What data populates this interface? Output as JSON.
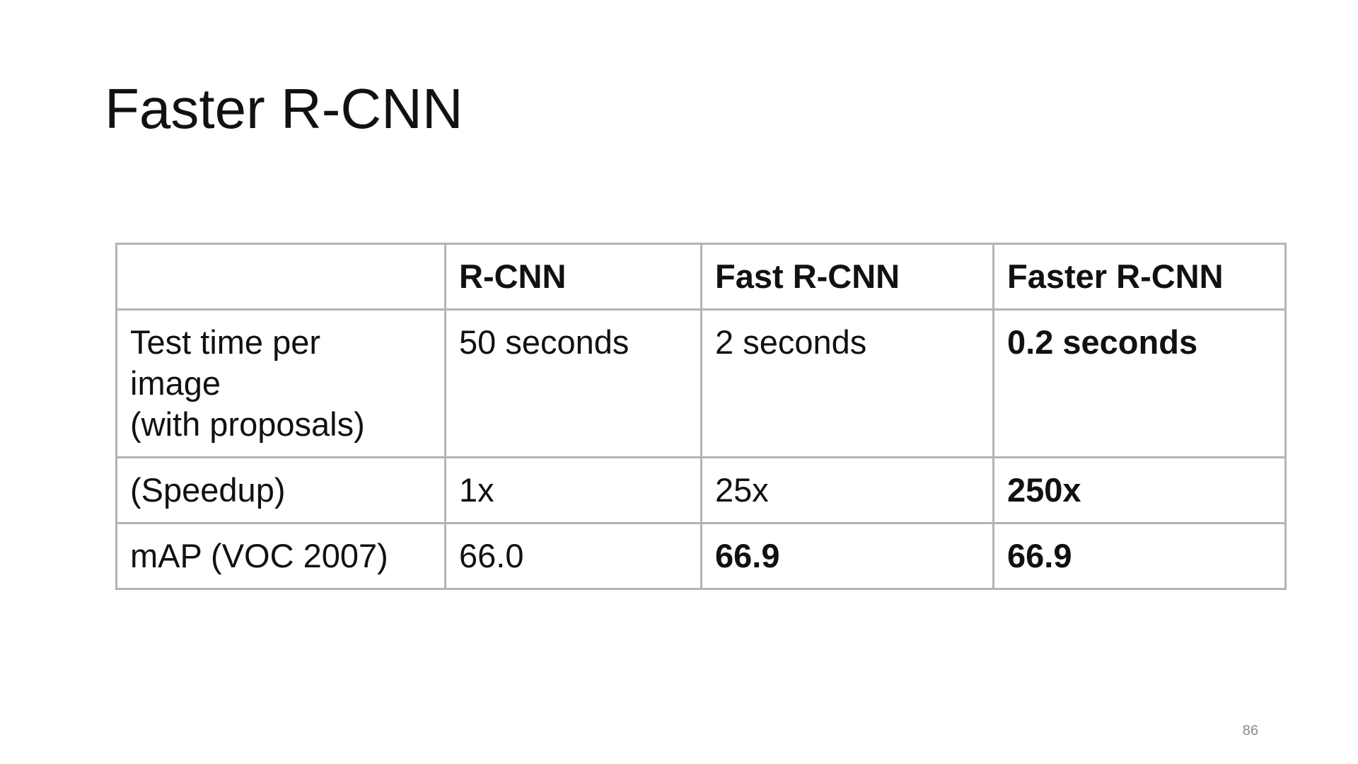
{
  "slide": {
    "title": "Faster R-CNN",
    "page_number": "86"
  },
  "table": {
    "headers": [
      "",
      "R-CNN",
      "Fast R-CNN",
      "Faster R-CNN"
    ],
    "rows": [
      {
        "label": "Test time per\nimage\n(with proposals)",
        "cells": [
          "50 seconds",
          "2 seconds",
          "0.2 seconds"
        ]
      },
      {
        "label": "(Speedup)",
        "cells": [
          "1x",
          "25x",
          "250x"
        ]
      },
      {
        "label": "mAP (VOC 2007)",
        "cells": [
          "66.0",
          "66.9",
          "66.9"
        ]
      }
    ]
  }
}
